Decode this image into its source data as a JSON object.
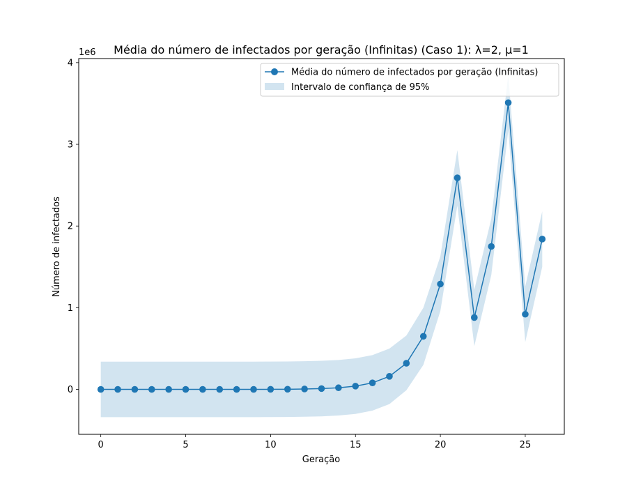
{
  "chart_data": {
    "type": "line",
    "title": "Média do número de infectados por geração (Infinitas) (Caso 1): λ=2, μ=1",
    "xlabel": "Geração",
    "ylabel": "Número de infectados",
    "y_scale_label": "1e6",
    "xlim": [
      -1.3,
      27.3
    ],
    "ylim": [
      -0.55,
      4.05
    ],
    "x_ticks": [
      0,
      5,
      10,
      15,
      20,
      25
    ],
    "y_ticks": [
      0,
      1,
      2,
      3,
      4
    ],
    "x_tick_labels": [
      "0",
      "5",
      "10",
      "15",
      "20",
      "25"
    ],
    "y_tick_labels": [
      "0",
      "1",
      "2",
      "3",
      "4"
    ],
    "grid": false,
    "legend_position": "top-right",
    "series": [
      {
        "name": "Média do número de infectados por geração (Infinitas)",
        "color": "#1f77b4",
        "marker": "circle",
        "x": [
          0,
          1,
          2,
          3,
          4,
          5,
          6,
          7,
          8,
          9,
          10,
          11,
          12,
          13,
          14,
          15,
          16,
          17,
          18,
          19,
          20,
          21,
          22,
          23,
          24,
          25,
          26
        ],
        "y": [
          0,
          0,
          0,
          0,
          0,
          0,
          0,
          0,
          0,
          0,
          0.001,
          0.002,
          0.005,
          0.01,
          0.02,
          0.04,
          0.08,
          0.16,
          0.32,
          0.65,
          1.29,
          2.59,
          0.88,
          1.75,
          3.51,
          0.92,
          1.84
        ]
      }
    ],
    "confidence_band": {
      "name": "Intervalo de confiança de 95%",
      "color": "#1f77b4",
      "opacity": 0.2,
      "x": [
        0,
        1,
        2,
        3,
        4,
        5,
        6,
        7,
        8,
        9,
        10,
        11,
        12,
        13,
        14,
        15,
        16,
        17,
        18,
        19,
        20,
        21,
        22,
        23,
        24,
        25,
        26
      ],
      "lower": [
        -0.34,
        -0.34,
        -0.34,
        -0.34,
        -0.34,
        -0.34,
        -0.34,
        -0.34,
        -0.34,
        -0.34,
        -0.339,
        -0.338,
        -0.335,
        -0.33,
        -0.32,
        -0.3,
        -0.26,
        -0.18,
        -0.01,
        0.3,
        0.96,
        2.25,
        0.53,
        1.4,
        3.17,
        0.58,
        1.5
      ],
      "upper": [
        0.34,
        0.34,
        0.34,
        0.34,
        0.34,
        0.34,
        0.34,
        0.34,
        0.34,
        0.34,
        0.341,
        0.342,
        0.345,
        0.35,
        0.36,
        0.38,
        0.42,
        0.5,
        0.66,
        1.0,
        1.63,
        2.93,
        1.22,
        2.09,
        3.85,
        1.26,
        2.18
      ]
    }
  }
}
